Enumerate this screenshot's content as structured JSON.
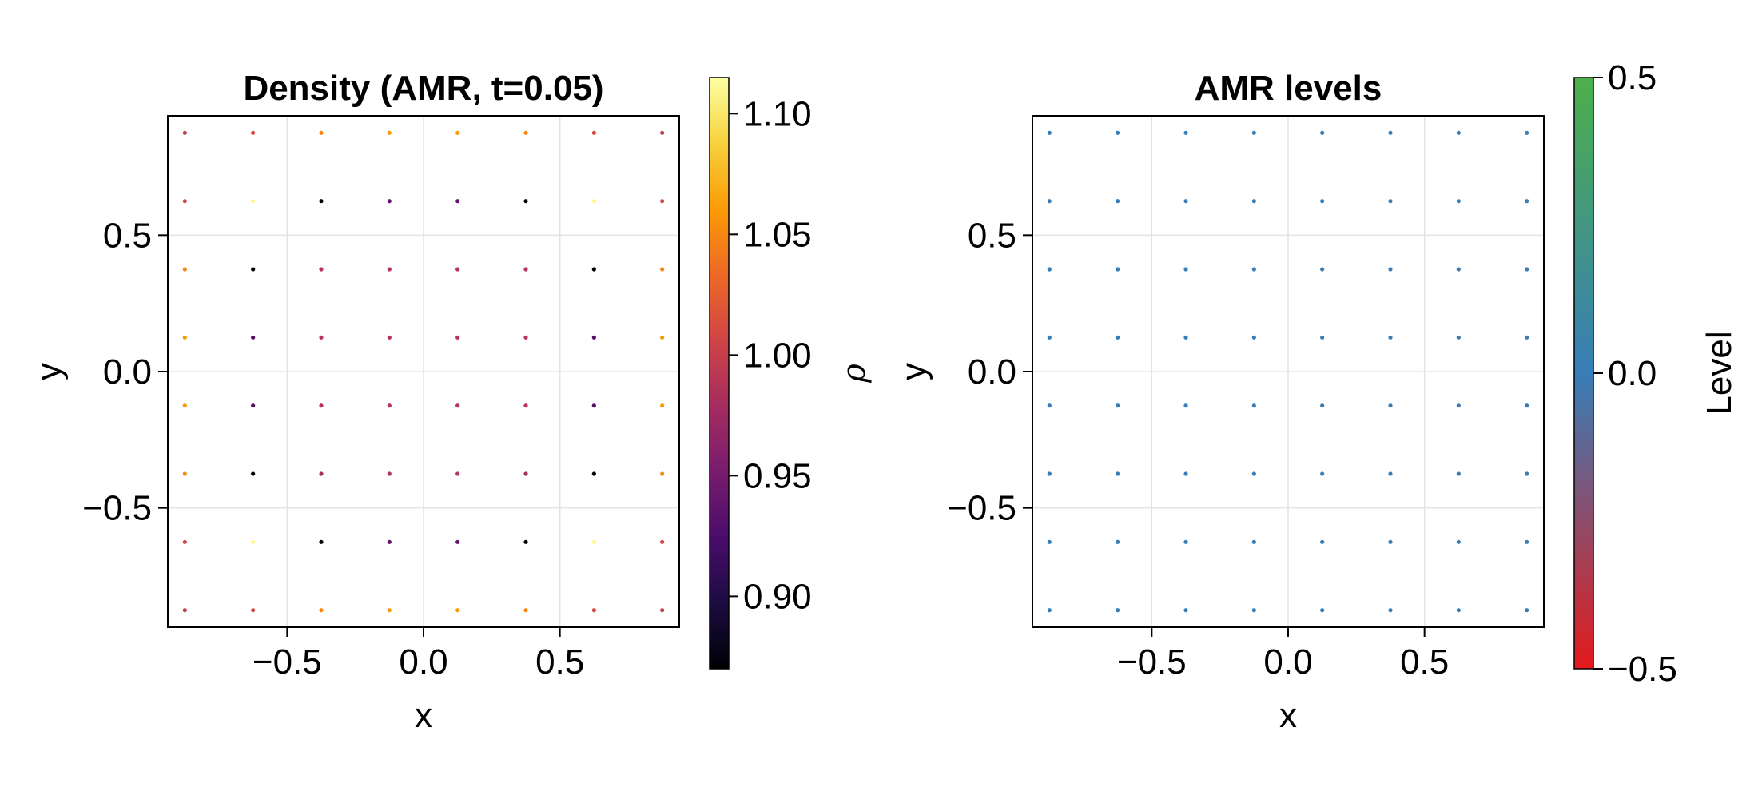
{
  "chart_data": [
    {
      "type": "scatter",
      "title": "Density (AMR, t=0.05)",
      "xlabel": "x",
      "ylabel": "y",
      "xlim": [
        -0.9375,
        0.9375
      ],
      "ylim": [
        -0.9375,
        0.9375
      ],
      "xticks": [
        -0.5,
        0.0,
        0.5
      ],
      "xtick_labels": [
        "−0.5",
        "0.0",
        "0.5"
      ],
      "yticks": [
        -0.5,
        0.0,
        0.5
      ],
      "ytick_labels": [
        "−0.5",
        "0.0",
        "0.5"
      ],
      "grid": true,
      "colormap": "inferno",
      "colorbar": {
        "label": "ρ",
        "range": [
          0.87,
          1.115
        ],
        "ticks": [
          0.9,
          0.95,
          1.0,
          1.05,
          1.1
        ],
        "tick_labels": [
          "0.90",
          "0.95",
          "1.00",
          "1.05",
          "1.10"
        ]
      },
      "x": [
        -0.875,
        -0.625,
        -0.375,
        -0.125,
        0.125,
        0.375,
        0.625,
        0.875
      ],
      "y": [
        0.875,
        0.625,
        0.375,
        0.125,
        -0.125,
        -0.375,
        -0.625,
        -0.875
      ],
      "values": [
        [
          1.0,
          1.01,
          1.05,
          1.06,
          1.06,
          1.05,
          1.01,
          1.0
        ],
        [
          1.01,
          1.11,
          0.87,
          0.94,
          0.94,
          0.87,
          1.11,
          1.01
        ],
        [
          1.05,
          0.87,
          0.99,
          0.99,
          0.99,
          0.99,
          0.87,
          1.05
        ],
        [
          1.06,
          0.93,
          0.99,
          0.99,
          0.99,
          0.99,
          0.93,
          1.06
        ],
        [
          1.06,
          0.93,
          0.99,
          0.99,
          0.99,
          0.99,
          0.93,
          1.06
        ],
        [
          1.05,
          0.87,
          0.98,
          0.99,
          0.99,
          0.98,
          0.87,
          1.05
        ],
        [
          1.01,
          1.11,
          0.87,
          0.94,
          0.94,
          0.87,
          1.11,
          1.01
        ],
        [
          1.0,
          1.01,
          1.05,
          1.06,
          1.06,
          1.05,
          1.01,
          1.0
        ]
      ]
    },
    {
      "type": "scatter",
      "title": "AMR levels",
      "xlabel": "x",
      "ylabel": "y",
      "xlim": [
        -0.9375,
        0.9375
      ],
      "ylim": [
        -0.9375,
        0.9375
      ],
      "xticks": [
        -0.5,
        0.0,
        0.5
      ],
      "xtick_labels": [
        "−0.5",
        "0.0",
        "0.5"
      ],
      "yticks": [
        -0.5,
        0.0,
        0.5
      ],
      "ytick_labels": [
        "−0.5",
        "0.0",
        "0.5"
      ],
      "grid": true,
      "colormap": "Set1 red-blue-green",
      "colorbar": {
        "label": "Level",
        "range": [
          -0.5,
          0.5
        ],
        "ticks": [
          -0.5,
          0.0,
          0.5
        ],
        "tick_labels": [
          "−0.5",
          "0.0",
          "0.5"
        ]
      },
      "x": [
        -0.875,
        -0.625,
        -0.375,
        -0.125,
        0.125,
        0.375,
        0.625,
        0.875
      ],
      "y": [
        0.875,
        0.625,
        0.375,
        0.125,
        -0.125,
        -0.375,
        -0.625,
        -0.875
      ],
      "values": [
        [
          0,
          0,
          0,
          0,
          0,
          0,
          0,
          0
        ],
        [
          0,
          0,
          0,
          0,
          0,
          0,
          0,
          0
        ],
        [
          0,
          0,
          0,
          0,
          0,
          0,
          0,
          0
        ],
        [
          0,
          0,
          0,
          0,
          0,
          0,
          0,
          0
        ],
        [
          0,
          0,
          0,
          0,
          0,
          0,
          0,
          0
        ],
        [
          0,
          0,
          0,
          0,
          0,
          0,
          0,
          0
        ],
        [
          0,
          0,
          0,
          0,
          0,
          0,
          0,
          0
        ],
        [
          0,
          0,
          0,
          0,
          0,
          0,
          0,
          0
        ]
      ]
    }
  ],
  "colormaps": {
    "inferno": [
      "#000004",
      "#1b0c41",
      "#4a0c6b",
      "#781c6d",
      "#a52c60",
      "#cf4446",
      "#ed6925",
      "#fb9b06",
      "#f7d13d",
      "#fcffa4"
    ],
    "Set1 red-blue-green": [
      "#e41a1c",
      "#377eb8",
      "#4daf4a"
    ]
  }
}
